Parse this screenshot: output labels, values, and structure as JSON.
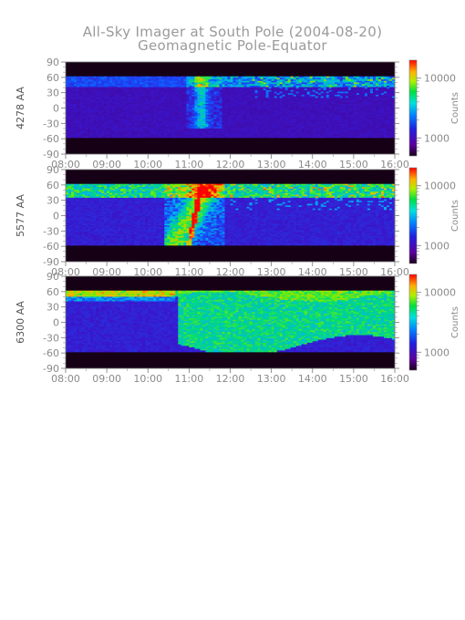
{
  "figure": {
    "title": "All-Sky Imager at South Pole (2004-08-20)",
    "subtitle": "Geomagnetic Pole-Equator"
  },
  "chart_data": [
    {
      "type": "heatmap",
      "panel": "4278",
      "ylabel": "4278 AA",
      "xticks": [
        "08:00",
        "09:00",
        "10:00",
        "11:00",
        "12:00",
        "13:00",
        "14:00",
        "15:00",
        "16:00"
      ],
      "xlim": [
        "08:00",
        "16:00"
      ],
      "yticks": [
        90,
        60,
        30,
        0,
        -30,
        -60,
        -90
      ],
      "ylim": [
        -90,
        90
      ],
      "data_coverage": {
        "lat_min": -58,
        "lat_max": 62
      },
      "colorbar": {
        "label": "Counts",
        "scale": "log",
        "ticks": [
          10000,
          1000
        ],
        "tick_labels": [
          "10000",
          "1000"
        ]
      }
    },
    {
      "type": "heatmap",
      "panel": "5577",
      "ylabel": "5577 AA",
      "xticks": [
        "08:00",
        "09:00",
        "10:00",
        "11:00",
        "12:00",
        "13:00",
        "14:00",
        "15:00",
        "16:00"
      ],
      "xlim": [
        "08:00",
        "16:00"
      ],
      "yticks": [
        90,
        60,
        30,
        0,
        -30,
        -60,
        -90
      ],
      "ylim": [
        -90,
        90
      ],
      "data_coverage": {
        "lat_min": -58,
        "lat_max": 62
      },
      "colorbar": {
        "label": "Counts",
        "scale": "log",
        "ticks": [
          10000,
          1000
        ],
        "tick_labels": [
          "10000",
          "1000"
        ]
      }
    },
    {
      "type": "heatmap",
      "panel": "6300",
      "ylabel": "6300 AA",
      "xticks": [
        "08:00",
        "09:00",
        "10:00",
        "11:00",
        "12:00",
        "13:00",
        "14:00",
        "15:00",
        "16:00"
      ],
      "xlim": [
        "08:00",
        "16:00"
      ],
      "yticks": [
        90,
        60,
        30,
        0,
        -30,
        -60,
        -90
      ],
      "ylim": [
        -90,
        90
      ],
      "data_coverage": {
        "lat_min": -58,
        "lat_max": 62
      },
      "colorbar": {
        "label": "Counts",
        "scale": "log",
        "ticks": [
          10000,
          1000
        ],
        "tick_labels": [
          "10000",
          "1000"
        ]
      }
    }
  ]
}
